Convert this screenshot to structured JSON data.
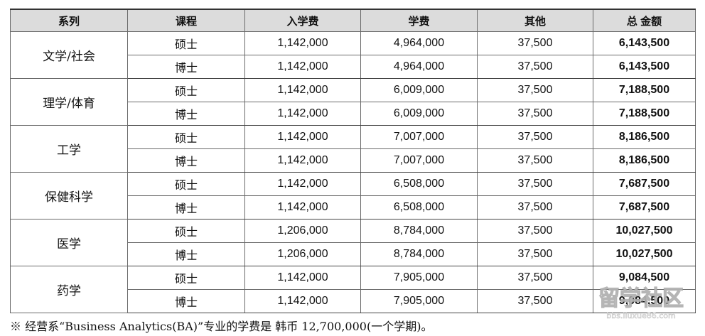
{
  "table": {
    "headers": [
      "系列",
      "课程",
      "入学费",
      "学费",
      "其他",
      "总 金额"
    ],
    "groups": [
      {
        "dept": "文学/社会",
        "rows": [
          {
            "course": "硕士",
            "entrance": "1,142,000",
            "tuition": "4,964,000",
            "other": "37,500",
            "total": "6,143,500"
          },
          {
            "course": "博士",
            "entrance": "1,142,000",
            "tuition": "4,964,000",
            "other": "37,500",
            "total": "6,143,500"
          }
        ]
      },
      {
        "dept": "理学/体育",
        "rows": [
          {
            "course": "硕士",
            "entrance": "1,142,000",
            "tuition": "6,009,000",
            "other": "37,500",
            "total": "7,188,500"
          },
          {
            "course": "博士",
            "entrance": "1,142,000",
            "tuition": "6,009,000",
            "other": "37,500",
            "total": "7,188,500"
          }
        ]
      },
      {
        "dept": "工学",
        "rows": [
          {
            "course": "硕士",
            "entrance": "1,142,000",
            "tuition": "7,007,000",
            "other": "37,500",
            "total": "8,186,500"
          },
          {
            "course": "博士",
            "entrance": "1,142,000",
            "tuition": "7,007,000",
            "other": "37,500",
            "total": "8,186,500"
          }
        ]
      },
      {
        "dept": "保健科学",
        "rows": [
          {
            "course": "硕士",
            "entrance": "1,142,000",
            "tuition": "6,508,000",
            "other": "37,500",
            "total": "7,687,500"
          },
          {
            "course": "博士",
            "entrance": "1,142,000",
            "tuition": "6,508,000",
            "other": "37,500",
            "total": "7,687,500"
          }
        ]
      },
      {
        "dept": "医学",
        "rows": [
          {
            "course": "硕士",
            "entrance": "1,206,000",
            "tuition": "8,784,000",
            "other": "37,500",
            "total": "10,027,500"
          },
          {
            "course": "博士",
            "entrance": "1,206,000",
            "tuition": "8,784,000",
            "other": "37,500",
            "total": "10,027,500"
          }
        ]
      },
      {
        "dept": "药学",
        "rows": [
          {
            "course": "硕士",
            "entrance": "1,142,000",
            "tuition": "7,905,000",
            "other": "37,500",
            "total": "9,084,500"
          },
          {
            "course": "博士",
            "entrance": "1,142,000",
            "tuition": "7,905,000",
            "other": "37,500",
            "total": "9,084,500"
          }
        ]
      }
    ]
  },
  "footnote": "※ 经营系“Business Analytics(BA)”专业的学费是 韩币 12,700,000(一个学期)。",
  "watermark": {
    "text": "留学社区",
    "url": "bbs.liuxue86.com"
  }
}
